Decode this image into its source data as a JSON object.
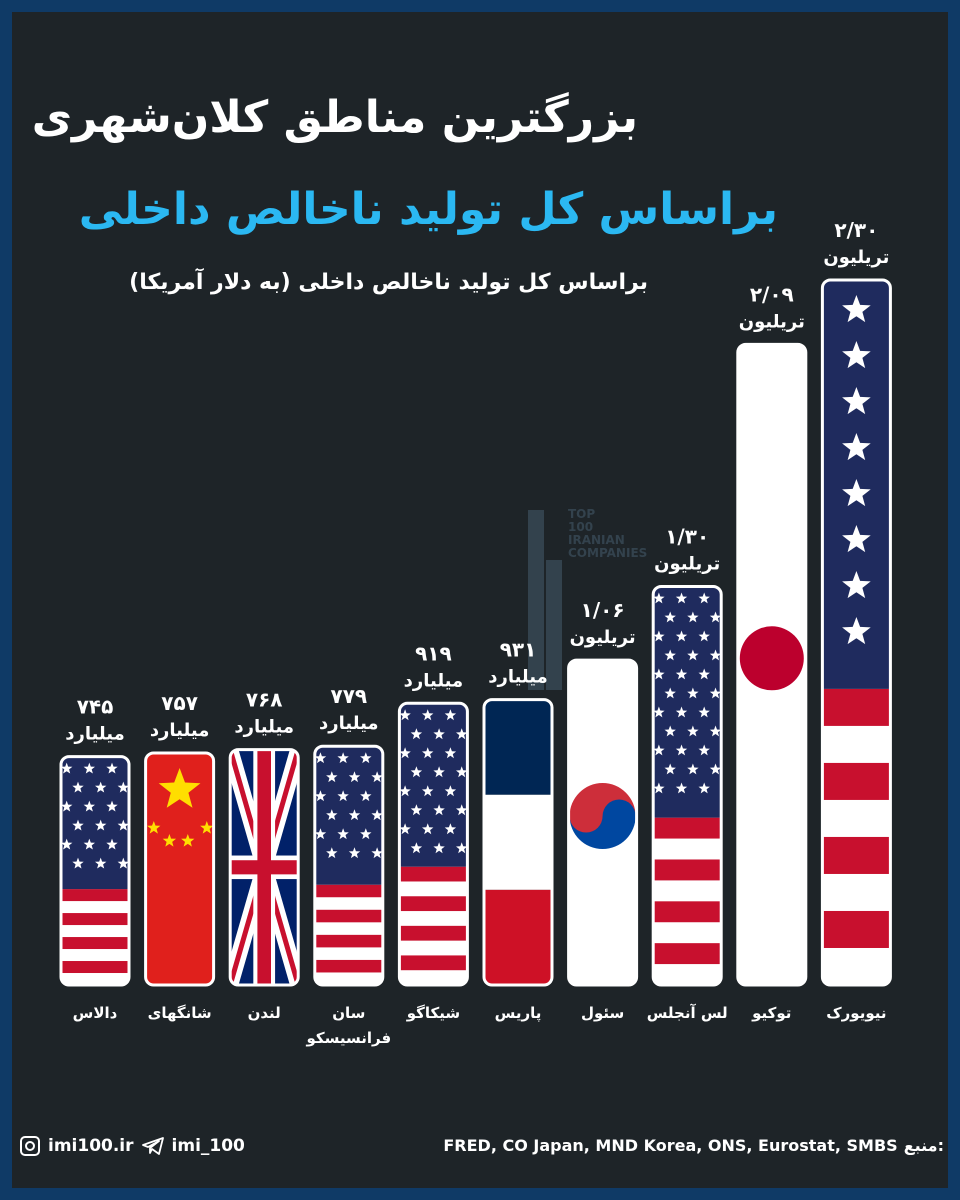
{
  "header": {
    "title": "بزرگترین مناطق کلان‌شهری",
    "subtitle": "براساس کل تولید ناخالص داخلی",
    "note": "براساس کل تولید ناخالص داخلی (به دلار آمریکا)"
  },
  "watermark": {
    "lines": [
      "TOP",
      "100",
      "IRANIAN",
      "COMPANIES"
    ],
    "color": "#5a7b94"
  },
  "chart_data": {
    "type": "bar",
    "unit": "USD",
    "ylim": [
      0,
      2.3
    ],
    "categories": [
      "دالاس",
      "شانگهای",
      "لندن",
      "سان فرانسیسکو",
      "شیکاگو",
      "پاریس",
      "سئول",
      "لس آنجلس",
      "توکیو",
      "نیویورک"
    ],
    "category_lines": [
      [
        "دالاس"
      ],
      [
        "شانگهای"
      ],
      [
        "لندن"
      ],
      [
        "سان",
        "فرانسیسکو"
      ],
      [
        "شیکاگو"
      ],
      [
        "پاریس"
      ],
      [
        "سئول"
      ],
      [
        "لس آنجلس"
      ],
      [
        "توکیو"
      ],
      [
        "نیویورک"
      ]
    ],
    "values": [
      0.745,
      0.757,
      0.768,
      0.779,
      0.919,
      0.931,
      1.06,
      1.3,
      2.09,
      2.3
    ],
    "data_labels": [
      [
        "۷۴۵",
        "میلیارد"
      ],
      [
        "۷۵۷",
        "میلیارد"
      ],
      [
        "۷۶۸",
        "میلیارد"
      ],
      [
        "۷۷۹",
        "میلیارد"
      ],
      [
        "۹۱۹",
        "میلیارد"
      ],
      [
        "۹۳۱",
        "میلیارد"
      ],
      [
        "۱/۰۶",
        "تریلیون"
      ],
      [
        "۱/۳۰",
        "تریلیون"
      ],
      [
        "۲/۰۹",
        "تریلیون"
      ],
      [
        "۲/۳۰",
        "تریلیون"
      ]
    ],
    "flags": [
      "usa",
      "china",
      "uk",
      "usa",
      "usa",
      "france",
      "korea",
      "usa",
      "japan",
      "usa"
    ],
    "grid": false,
    "legend": "none"
  },
  "colors": {
    "background": "#1e2428",
    "border": "#0f3a66",
    "subtitle": "#2bb8f2",
    "us_blue": "#1f2b5e",
    "us_red": "#c8102e",
    "china_red": "#e0201c",
    "china_yellow": "#ffde00",
    "uk_blue": "#012169",
    "france_blue": "#002654",
    "france_red": "#ce1126",
    "korea_red": "#cd2e3a",
    "korea_blue": "#0047a0",
    "japan_red": "#bc002d"
  },
  "footer": {
    "instagram": "imi100.ir",
    "telegram": "imi_100",
    "source_label": "منبع:",
    "sources": "FRED, CO Japan, MND Korea, ONS, Eurostat, SMBS"
  }
}
